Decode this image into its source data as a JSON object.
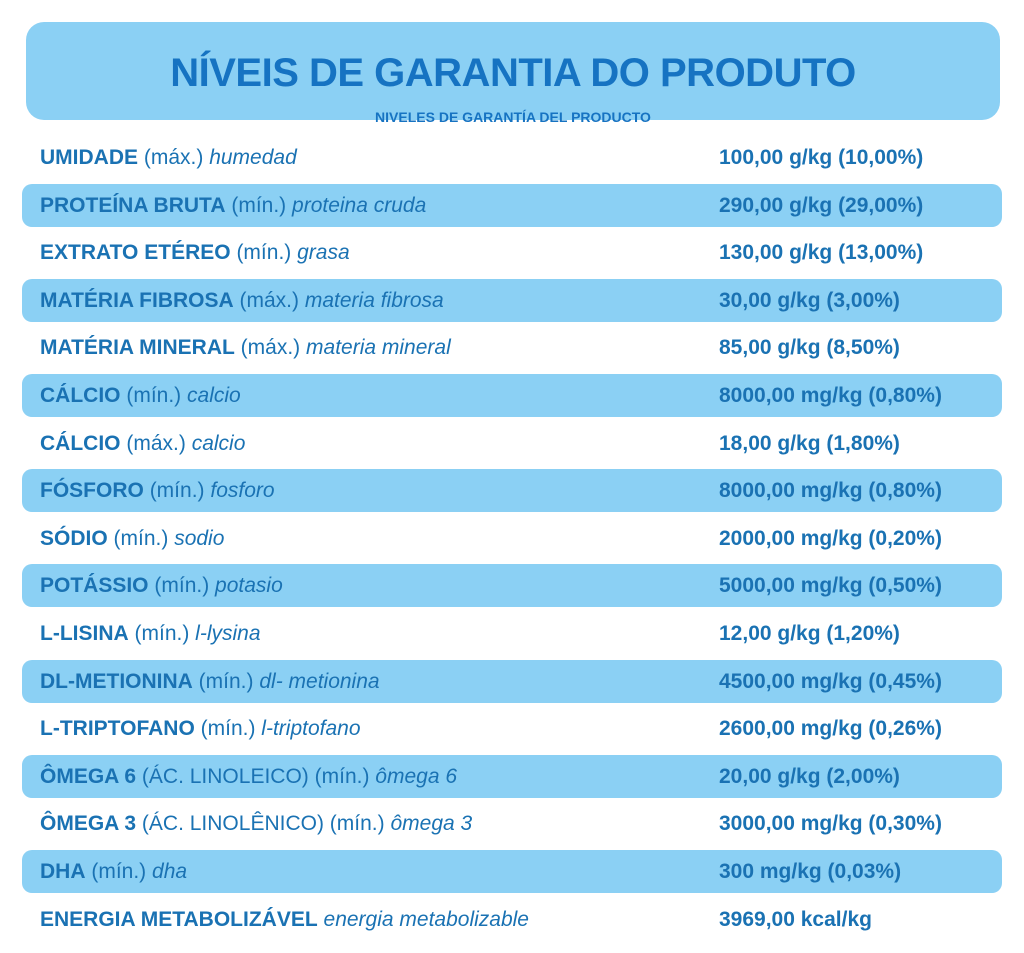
{
  "header": {
    "title": "NÍVEIS DE GARANTIA DO PRODUTO",
    "subtitle": "NIVELES DE GARANTÍA DEL PRODUCTO"
  },
  "rows": [
    {
      "name": "UMIDADE",
      "qualifier": "(máx.)",
      "spanish": "humedad",
      "value": "100,00 g/kg (10,00%)"
    },
    {
      "name": "PROTEÍNA BRUTA",
      "qualifier": "(mín.)",
      "spanish": "proteina cruda",
      "value": "290,00 g/kg (29,00%)"
    },
    {
      "name": "EXTRATO ETÉREO",
      "qualifier": "(mín.)",
      "spanish": "grasa",
      "value": "130,00 g/kg (13,00%)"
    },
    {
      "name": "MATÉRIA FIBROSA",
      "qualifier": "(máx.)",
      "spanish": "materia fibrosa",
      "value": "30,00 g/kg (3,00%)"
    },
    {
      "name": "MATÉRIA MINERAL",
      "qualifier": "(máx.)",
      "spanish": "materia mineral",
      "value": "85,00 g/kg (8,50%)"
    },
    {
      "name": "CÁLCIO",
      "qualifier": "(mín.)",
      "spanish": "calcio",
      "value": "8000,00 mg/kg (0,80%)"
    },
    {
      "name": "CÁLCIO",
      "qualifier": "(máx.)",
      "spanish": "calcio",
      "value": "18,00 g/kg (1,80%)"
    },
    {
      "name": "FÓSFORO",
      "qualifier": "(mín.)",
      "spanish": "fosforo",
      "value": "8000,00 mg/kg (0,80%)"
    },
    {
      "name": "SÓDIO",
      "qualifier": "(mín.)",
      "spanish": "sodio",
      "value": "2000,00 mg/kg (0,20%)"
    },
    {
      "name": "POTÁSSIO",
      "qualifier": "(mín.)",
      "spanish": "potasio",
      "value": "5000,00 mg/kg (0,50%)"
    },
    {
      "name": "L-LISINA",
      "qualifier": "(mín.)",
      "spanish": "l-lysina",
      "value": "12,00 g/kg (1,20%)"
    },
    {
      "name": "DL-METIONINA",
      "qualifier": "(mín.)",
      "spanish": "dl- metionina",
      "value": "4500,00 mg/kg (0,45%)"
    },
    {
      "name": "L-TRIPTOFANO",
      "qualifier": "(mín.)",
      "spanish": "l-triptofano",
      "value": "2600,00 mg/kg (0,26%)"
    },
    {
      "name": "ÔMEGA 6",
      "qualifier": "(ÁC. LINOLEICO) (mín.)",
      "spanish": "ômega 6",
      "value": "20,00 g/kg (2,00%)"
    },
    {
      "name": "ÔMEGA 3",
      "qualifier": "(ÁC. LINOLÊNICO) (mín.)",
      "spanish": "ômega 3",
      "value": "3000,00 mg/kg (0,30%)"
    },
    {
      "name": "DHA",
      "qualifier": "(mín.)",
      "spanish": "dha",
      "value": "300 mg/kg (0,03%)"
    },
    {
      "name": "ENERGIA METABOLIZÁVEL",
      "qualifier": "",
      "spanish": "energia metabolizable",
      "value": "3969,00 kcal/kg"
    }
  ],
  "colors": {
    "accent_fill": "#8bd0f4",
    "text": "#1a72b3"
  }
}
